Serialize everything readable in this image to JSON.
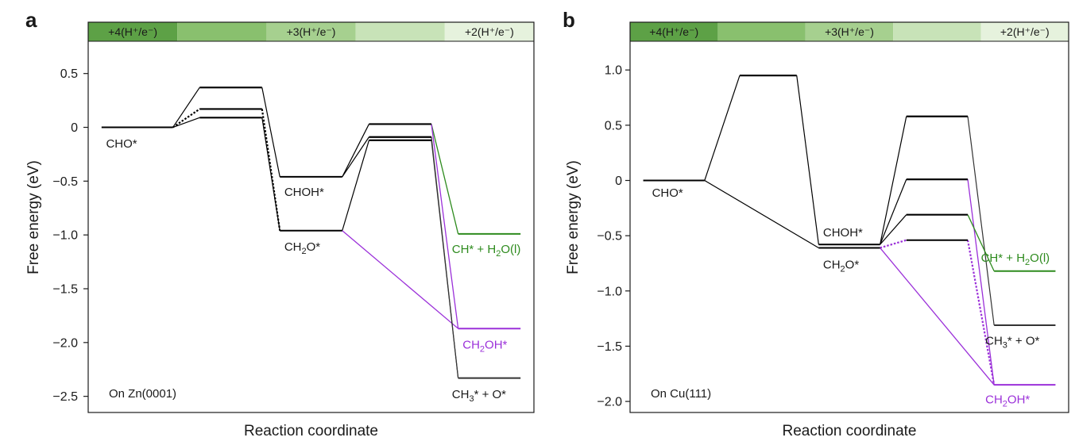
{
  "chart_data": [
    {
      "type": "line",
      "panel": "a",
      "annotation": "On Zn(0001)",
      "xlabel": "Reaction coordinate",
      "ylabel": "Free energy (eV)",
      "ylim": [
        -2.65,
        0.8
      ],
      "yticks": [
        "0.5",
        "0",
        "−0.5",
        "−1.0",
        "−1.5",
        "−2.0",
        "−2.5"
      ],
      "ytick_values": [
        0.5,
        0,
        -0.5,
        -1.0,
        -1.5,
        -2.0,
        -2.5
      ],
      "bands": [
        {
          "label": "+4(H⁺/e⁻)",
          "color": "#5da146"
        },
        {
          "label": "",
          "color": "#89c06e"
        },
        {
          "label": "+3(H⁺/e⁻)",
          "color": "#a6d08f"
        },
        {
          "label": "",
          "color": "#c8e3b8"
        },
        {
          "label": "+2(H⁺/e⁻)",
          "color": "#e6f2dd"
        }
      ],
      "levels": [
        {
          "x": [
            0.15,
            0.95
          ],
          "y": 0.0,
          "color": "#000000",
          "width": 2
        },
        {
          "x": [
            1.25,
            1.95
          ],
          "y": 0.37,
          "color": "#000000",
          "width": 2.2
        },
        {
          "x": [
            1.25,
            1.95
          ],
          "y": 0.17,
          "color": "#000000",
          "width": 2.2
        },
        {
          "x": [
            1.25,
            1.95
          ],
          "y": 0.09,
          "color": "#000000",
          "width": 2.2
        },
        {
          "x": [
            2.15,
            2.85
          ],
          "y": -0.46,
          "color": "#000000",
          "width": 2
        },
        {
          "x": [
            2.15,
            2.85
          ],
          "y": -0.96,
          "color": "#000000",
          "width": 2
        },
        {
          "x": [
            3.15,
            3.85
          ],
          "y": 0.03,
          "color": "#000000",
          "width": 2.2
        },
        {
          "x": [
            3.15,
            3.85
          ],
          "y": -0.09,
          "color": "#000000",
          "width": 2.2
        },
        {
          "x": [
            3.15,
            3.85
          ],
          "y": -0.12,
          "color": "#000000",
          "width": 2.2
        },
        {
          "x": [
            4.15,
            4.85
          ],
          "y": -0.99,
          "color": "#2e8b1e",
          "width": 2
        },
        {
          "x": [
            4.15,
            4.85
          ],
          "y": -1.87,
          "color": "#9b30d9",
          "width": 2
        },
        {
          "x": [
            4.15,
            4.85
          ],
          "y": -2.33,
          "color": "#333333",
          "width": 2
        }
      ],
      "connectors": [
        {
          "x": [
            0.95,
            1.25
          ],
          "y": [
            0.0,
            0.37
          ],
          "color": "#000000",
          "dash": false,
          "width": 1.2
        },
        {
          "x": [
            0.95,
            1.25
          ],
          "y": [
            0.0,
            0.17
          ],
          "color": "#000000",
          "dash": true,
          "width": 2.2
        },
        {
          "x": [
            0.95,
            1.25
          ],
          "y": [
            0.0,
            0.09
          ],
          "color": "#000000",
          "dash": false,
          "width": 1.2
        },
        {
          "x": [
            1.95,
            2.15
          ],
          "y": [
            0.37,
            -0.46
          ],
          "color": "#000000",
          "dash": false,
          "width": 1.2
        },
        {
          "x": [
            1.95,
            2.15
          ],
          "y": [
            0.17,
            -0.96
          ],
          "color": "#000000",
          "dash": true,
          "width": 2.2
        },
        {
          "x": [
            1.95,
            2.15
          ],
          "y": [
            0.09,
            -0.96
          ],
          "color": "#000000",
          "dash": false,
          "width": 1.2
        },
        {
          "x": [
            2.85,
            3.15
          ],
          "y": [
            -0.46,
            0.03
          ],
          "color": "#000000",
          "dash": false,
          "width": 1.2
        },
        {
          "x": [
            2.85,
            3.15
          ],
          "y": [
            -0.46,
            -0.09
          ],
          "color": "#000000",
          "dash": false,
          "width": 1.2
        },
        {
          "x": [
            2.85,
            3.15
          ],
          "y": [
            -0.96,
            -0.12
          ],
          "color": "#000000",
          "dash": false,
          "width": 1.2
        },
        {
          "x": [
            2.85,
            4.15
          ],
          "y": [
            -0.96,
            -1.87
          ],
          "color": "#9b30d9",
          "dash": false,
          "width": 1.3
        },
        {
          "x": [
            3.85,
            4.15
          ],
          "y": [
            0.03,
            -0.99
          ],
          "color": "#2e8b1e",
          "dash": false,
          "width": 1.3
        },
        {
          "x": [
            3.85,
            4.15
          ],
          "y": [
            0.03,
            -1.87
          ],
          "color": "#9b30d9",
          "dash": false,
          "width": 1.3
        },
        {
          "x": [
            3.85,
            4.15
          ],
          "y": [
            -0.09,
            -2.33
          ],
          "color": "#333333",
          "dash": false,
          "width": 1.2
        },
        {
          "x": [
            3.85,
            4.15
          ],
          "y": [
            -0.12,
            -2.33
          ],
          "color": "#333333",
          "dash": false,
          "width": 1.2
        }
      ],
      "labels": [
        {
          "text": "CHO*",
          "x": 0.2,
          "y": -0.15,
          "color": "#1a1a1a"
        },
        {
          "text": "CHOH*",
          "x": 2.2,
          "y": -0.6,
          "color": "#1a1a1a"
        },
        {
          "text": "CH₂O*",
          "x": 2.2,
          "y": -1.11,
          "color": "#1a1a1a"
        },
        {
          "text": "CH* + H₂O(l)",
          "x": 4.08,
          "y": -1.13,
          "color": "#2e8b1e"
        },
        {
          "text": "CH₂OH*",
          "x": 4.2,
          "y": -2.02,
          "color": "#9b30d9"
        },
        {
          "text": "CH₃* + O*",
          "x": 4.08,
          "y": -2.48,
          "color": "#1a1a1a"
        }
      ]
    },
    {
      "type": "line",
      "panel": "b",
      "annotation": "On Cu(111)",
      "xlabel": "Reaction coordinate",
      "ylabel": "Free energy (eV)",
      "ylim": [
        -2.1,
        1.26
      ],
      "yticks": [
        "1.0",
        "0.5",
        "0",
        "−0.5",
        "−1.0",
        "−1.5",
        "−2.0"
      ],
      "ytick_values": [
        1.0,
        0.5,
        0,
        -0.5,
        -1.0,
        -1.5,
        -2.0
      ],
      "bands": [
        {
          "label": "+4(H⁺/e⁻)",
          "color": "#5da146"
        },
        {
          "label": "",
          "color": "#89c06e"
        },
        {
          "label": "+3(H⁺/e⁻)",
          "color": "#a6d08f"
        },
        {
          "label": "",
          "color": "#c8e3b8"
        },
        {
          "label": "+2(H⁺/e⁻)",
          "color": "#e6f2dd"
        }
      ],
      "levels": [
        {
          "x": [
            0.15,
            0.85
          ],
          "y": 0.0,
          "color": "#000000",
          "width": 2
        },
        {
          "x": [
            1.25,
            1.9
          ],
          "y": 0.95,
          "color": "#000000",
          "width": 2.2
        },
        {
          "x": [
            2.15,
            2.85
          ],
          "y": -0.58,
          "color": "#000000",
          "width": 2
        },
        {
          "x": [
            2.15,
            2.85
          ],
          "y": -0.61,
          "color": "#000000",
          "width": 2
        },
        {
          "x": [
            3.15,
            3.85
          ],
          "y": 0.58,
          "color": "#000000",
          "width": 2.2
        },
        {
          "x": [
            3.15,
            3.85
          ],
          "y": 0.01,
          "color": "#000000",
          "width": 2.2
        },
        {
          "x": [
            3.15,
            3.85
          ],
          "y": -0.31,
          "color": "#000000",
          "width": 2.2
        },
        {
          "x": [
            3.15,
            3.85
          ],
          "y": -0.54,
          "color": "#000000",
          "width": 2
        },
        {
          "x": [
            4.15,
            4.85
          ],
          "y": -0.82,
          "color": "#2e8b1e",
          "width": 2
        },
        {
          "x": [
            4.15,
            4.85
          ],
          "y": -1.31,
          "color": "#333333",
          "width": 2
        },
        {
          "x": [
            4.15,
            4.85
          ],
          "y": -1.85,
          "color": "#9b30d9",
          "width": 2
        }
      ],
      "connectors": [
        {
          "x": [
            0.85,
            1.25
          ],
          "y": [
            0.0,
            0.95
          ],
          "color": "#000000",
          "dash": false,
          "width": 1.2
        },
        {
          "x": [
            0.85,
            2.15
          ],
          "y": [
            0.0,
            -0.61
          ],
          "color": "#000000",
          "dash": false,
          "width": 1.2
        },
        {
          "x": [
            1.9,
            2.15
          ],
          "y": [
            0.95,
            -0.58
          ],
          "color": "#000000",
          "dash": false,
          "width": 1.2
        },
        {
          "x": [
            2.85,
            3.15
          ],
          "y": [
            -0.58,
            0.58
          ],
          "color": "#000000",
          "dash": false,
          "width": 1.2
        },
        {
          "x": [
            2.85,
            3.15
          ],
          "y": [
            -0.58,
            0.01
          ],
          "color": "#000000",
          "dash": false,
          "width": 1.2
        },
        {
          "x": [
            2.85,
            3.15
          ],
          "y": [
            -0.58,
            -0.31
          ],
          "color": "#000000",
          "dash": false,
          "width": 1.2
        },
        {
          "x": [
            2.85,
            3.15
          ],
          "y": [
            -0.61,
            -0.54
          ],
          "color": "#9b30d9",
          "dash": true,
          "width": 2.2
        },
        {
          "x": [
            2.85,
            4.15
          ],
          "y": [
            -0.61,
            -1.85
          ],
          "color": "#9b30d9",
          "dash": false,
          "width": 1.3
        },
        {
          "x": [
            3.85,
            4.15
          ],
          "y": [
            0.58,
            -1.31
          ],
          "color": "#333333",
          "dash": false,
          "width": 1.2
        },
        {
          "x": [
            3.85,
            4.15
          ],
          "y": [
            0.01,
            -1.85
          ],
          "color": "#9b30d9",
          "dash": false,
          "width": 1.3
        },
        {
          "x": [
            3.85,
            4.15
          ],
          "y": [
            -0.31,
            -0.82
          ],
          "color": "#2e8b1e",
          "dash": false,
          "width": 1.3
        },
        {
          "x": [
            3.85,
            4.15
          ],
          "y": [
            -0.54,
            -1.85
          ],
          "color": "#9b30d9",
          "dash": true,
          "width": 2.2
        }
      ],
      "labels": [
        {
          "text": "CHO*",
          "x": 0.25,
          "y": -0.11,
          "color": "#1a1a1a"
        },
        {
          "text": "CHOH*",
          "x": 2.2,
          "y": -0.47,
          "color": "#1a1a1a"
        },
        {
          "text": "CH₂O*",
          "x": 2.2,
          "y": -0.76,
          "color": "#1a1a1a"
        },
        {
          "text": "CH* + H₂O(l)",
          "x": 4.0,
          "y": -0.7,
          "color": "#2e8b1e"
        },
        {
          "text": "CH₃* + O*",
          "x": 4.05,
          "y": -1.45,
          "color": "#1a1a1a"
        },
        {
          "text": "CH₂OH*",
          "x": 4.05,
          "y": -1.98,
          "color": "#9b30d9"
        }
      ]
    }
  ],
  "panels": [
    {
      "letter": "a"
    },
    {
      "letter": "b"
    }
  ]
}
